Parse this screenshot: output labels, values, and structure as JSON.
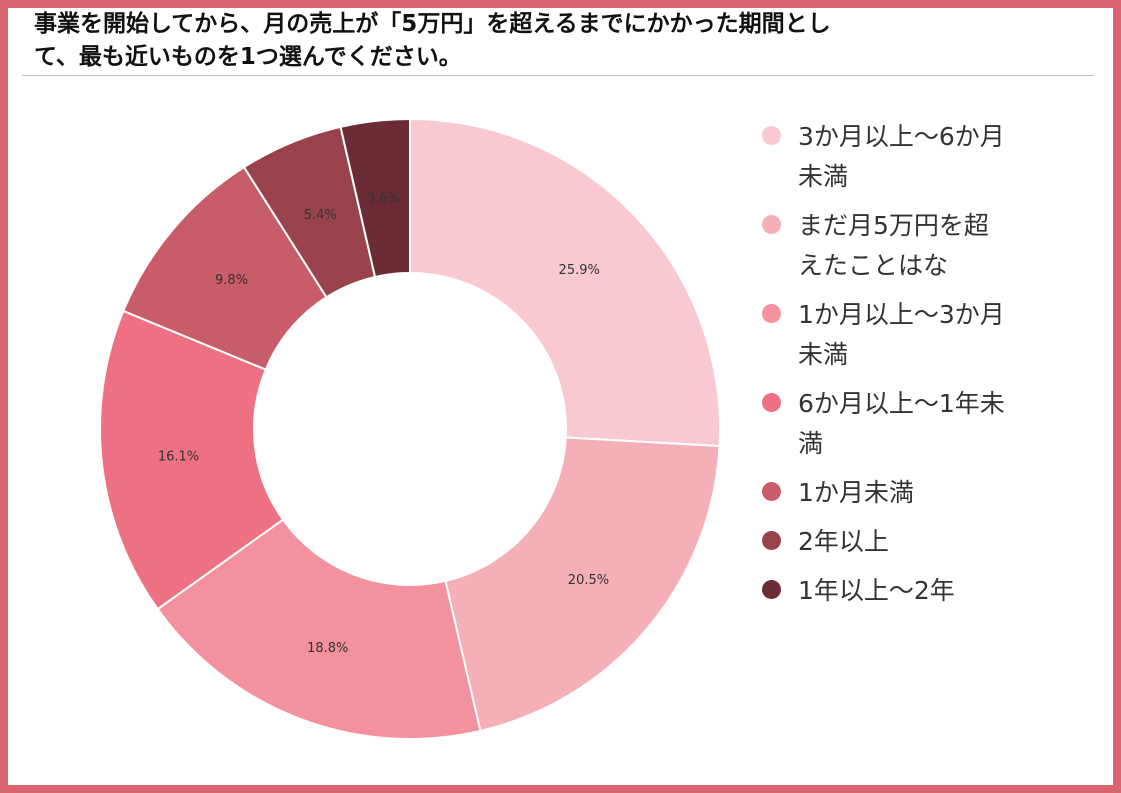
{
  "title": {
    "line1": "事業を開始してから、月の売上が「5万円」を超えるまでにかかった期間とし",
    "line2": "て、最も近いものを1つ選んでください。"
  },
  "colors": {
    "frame": "#d9636e",
    "segments": [
      "#f8c9d1",
      "#f5afb7",
      "#f3919e",
      "#ee7183",
      "#c95c69",
      "#9a424c",
      "#6b2c35"
    ]
  },
  "chart_data": {
    "type": "pie",
    "style": "donut",
    "categories": [
      "3か月以上～6か月未満",
      "まだ月5万円を超えたことはな",
      "1か月以上～3か月未満",
      "6か月以上～1年未満",
      "1か月未満",
      "2年以上",
      "1年以上～2年"
    ],
    "values": [
      25.9,
      20.5,
      18.8,
      16.1,
      9.8,
      5.4,
      3.6
    ],
    "value_labels": [
      "25.9%",
      "20.5%",
      "18.8%",
      "16.1%",
      "9.8%",
      "5.4%",
      "3.6%"
    ],
    "unit": "%",
    "legend_position": "right",
    "direction": "clockwise from top"
  }
}
